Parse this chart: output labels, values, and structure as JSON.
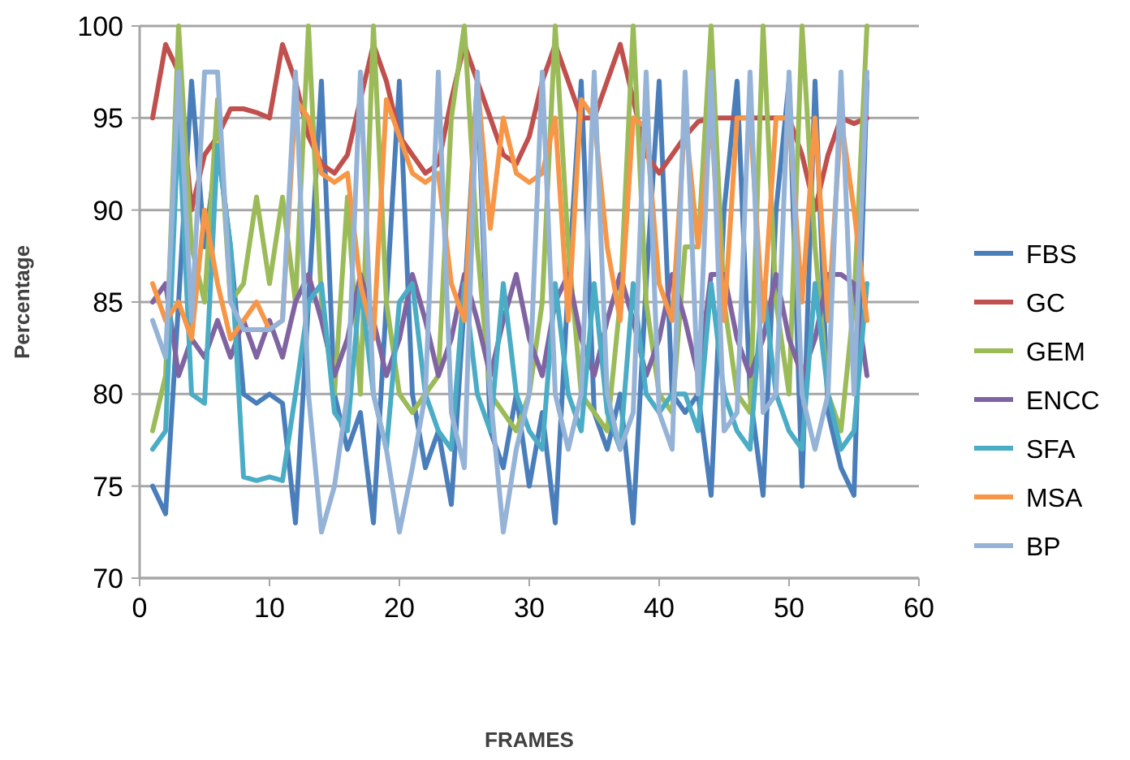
{
  "chart_data": {
    "type": "line",
    "xlabel": "FRAMES",
    "ylabel": "Percentage",
    "xlim": [
      0,
      60
    ],
    "xticks": [
      0,
      10,
      20,
      30,
      40,
      50,
      60
    ],
    "ylim": [
      70,
      100
    ],
    "yticks": [
      70,
      75,
      80,
      85,
      90,
      95,
      100
    ],
    "grid": "y",
    "legend": "right",
    "marker": "none",
    "line_style": "solid",
    "x": [
      1,
      2,
      3,
      4,
      5,
      6,
      7,
      8,
      9,
      10,
      11,
      12,
      13,
      14,
      15,
      16,
      17,
      18,
      19,
      20,
      21,
      22,
      23,
      24,
      25,
      26,
      27,
      28,
      29,
      30,
      31,
      32,
      33,
      34,
      35,
      36,
      37,
      38,
      39,
      40,
      41,
      42,
      43,
      44,
      45,
      46,
      47,
      48,
      49,
      50,
      51,
      52,
      53,
      54,
      55,
      56
    ],
    "series": [
      {
        "name": "FBS",
        "color": "#4a7ebb",
        "values": [
          75,
          73.5,
          85,
          97,
          88,
          93.5,
          88,
          80,
          79.5,
          80,
          79.5,
          73,
          85,
          97,
          80,
          77,
          79,
          73,
          85,
          97,
          80,
          76,
          78,
          74,
          85,
          97,
          78,
          76,
          80,
          75,
          79,
          73,
          86,
          97,
          79,
          77,
          80,
          73,
          86,
          97,
          80,
          79,
          80,
          74.5,
          90,
          97,
          80,
          74.5,
          90,
          97,
          75,
          97,
          79,
          76,
          74.5,
          97
        ]
      },
      {
        "name": "GC",
        "color": "#c0504d",
        "values": [
          95,
          99,
          97.5,
          90,
          93,
          94,
          95.5,
          95.5,
          95.3,
          95,
          99,
          97,
          94,
          92.5,
          92,
          93,
          96,
          99,
          97,
          94,
          93,
          92,
          92.5,
          96,
          99,
          97,
          95,
          93,
          92.5,
          94,
          97,
          99,
          97,
          95,
          95,
          97,
          99,
          96,
          93,
          92,
          93,
          94,
          94.8,
          95,
          95,
          95,
          95,
          95,
          95,
          95,
          93,
          90,
          93,
          95,
          94.7,
          95
        ]
      },
      {
        "name": "GEM",
        "color": "#9bbb59",
        "values": [
          78,
          81,
          100,
          88,
          85,
          96,
          85,
          86,
          90.7,
          86,
          90.7,
          85,
          100,
          85,
          80,
          90.7,
          80,
          100,
          85,
          80,
          79,
          80,
          81,
          95,
          100,
          88,
          80,
          79,
          78,
          80,
          85,
          100,
          88,
          80,
          79,
          78,
          85,
          100,
          85,
          80,
          79,
          88,
          88,
          100,
          85,
          80,
          79,
          100,
          85,
          80,
          100,
          88,
          80,
          78,
          85,
          100
        ]
      },
      {
        "name": "ENCC",
        "color": "#8064a2",
        "values": [
          85,
          86,
          81,
          83,
          82,
          84,
          82,
          84,
          82,
          84,
          82,
          85,
          86.5,
          84,
          81,
          83,
          86.5,
          84,
          81,
          83,
          86.5,
          84,
          81,
          83,
          86.5,
          84,
          81,
          84,
          86.5,
          83,
          81,
          85,
          86.5,
          83,
          81,
          84,
          86.5,
          84,
          81,
          83,
          86.5,
          84,
          81,
          86.5,
          86.5,
          83,
          81,
          83,
          86.5,
          83,
          81,
          83,
          86.5,
          86.5,
          86,
          81
        ]
      },
      {
        "name": "SFA",
        "color": "#4bacc6",
        "values": [
          77,
          78,
          95,
          80,
          79.5,
          93.5,
          88,
          75.5,
          75.3,
          75.5,
          75.3,
          80,
          85,
          86,
          79,
          78,
          86,
          80,
          77,
          85,
          86,
          80,
          78,
          77,
          86,
          80,
          78,
          86,
          80,
          78,
          77,
          86,
          80,
          78,
          86,
          79,
          77,
          86,
          80,
          79,
          80,
          80,
          78,
          86,
          80,
          78,
          77,
          86,
          80,
          78,
          77,
          86,
          80,
          77,
          78,
          86
        ]
      },
      {
        "name": "MSA",
        "color": "#f79646",
        "values": [
          86,
          84,
          85,
          83,
          90,
          86,
          83,
          84,
          85,
          83.5,
          84,
          96,
          95,
          92,
          91.5,
          92,
          86,
          83,
          96,
          94,
          92,
          91.5,
          92,
          86,
          84,
          97,
          89,
          95,
          92,
          91.5,
          92,
          95,
          84,
          96,
          95,
          88,
          84,
          95,
          94.5,
          86,
          84,
          95,
          88,
          95,
          84,
          95,
          95,
          84,
          95,
          95,
          85,
          95,
          84,
          95,
          90,
          84
        ]
      },
      {
        "name": "BP",
        "color": "#95b3d7",
        "values": [
          84,
          82,
          97.5,
          84,
          97.5,
          97.5,
          85,
          83.5,
          83.5,
          83.5,
          84,
          97.5,
          80,
          72.5,
          75,
          80,
          97.5,
          80,
          77,
          72.5,
          76,
          80,
          97.5,
          79,
          76,
          97.5,
          80,
          72.5,
          77,
          80,
          97.5,
          80,
          77,
          80,
          97.5,
          80,
          77,
          79,
          97.5,
          79,
          77,
          97.5,
          80,
          97.5,
          78,
          79,
          97.5,
          79,
          80,
          97.5,
          80,
          77,
          80,
          97.5,
          80,
          97.5
        ]
      }
    ]
  }
}
